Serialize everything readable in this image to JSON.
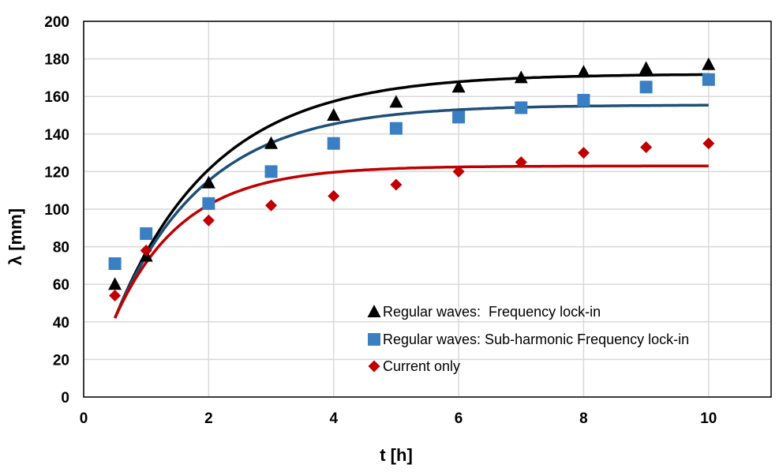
{
  "chart_data": {
    "type": "scatter",
    "xlabel": "t [h]",
    "ylabel": "λ [mm]",
    "xlim": [
      0,
      11
    ],
    "ylim": [
      0,
      200
    ],
    "xticks": [
      0,
      2,
      4,
      6,
      8,
      10
    ],
    "yticks": [
      0,
      20,
      40,
      60,
      80,
      100,
      120,
      140,
      160,
      180,
      200
    ],
    "grid": true,
    "legend_position": "bottom-center",
    "series": [
      {
        "name": "Regular waves:  Frequency lock-in",
        "marker": "triangle",
        "color": "#000000",
        "fit_color": "#000000",
        "x": [
          0.5,
          1,
          2,
          3,
          4,
          5,
          6,
          7,
          8,
          9,
          10
        ],
        "y": [
          60,
          75,
          114,
          135,
          150,
          157,
          165,
          170,
          173,
          175,
          177
        ],
        "fit": {
          "asymptote": 172,
          "start_value": 42,
          "tau": 1.6
        }
      },
      {
        "name": "Regular waves: Sub-harmonic Frequency lock-in",
        "marker": "square",
        "color": "#3a7fc1",
        "fit_color": "#1f4e79",
        "x": [
          0.5,
          1,
          2,
          3,
          4,
          5,
          6,
          7,
          8,
          9,
          10
        ],
        "y": [
          71,
          87,
          103,
          120,
          135,
          143,
          149,
          154,
          158,
          165,
          169
        ],
        "fit": {
          "asymptote": 155.5,
          "start_value": 42,
          "tau": 1.45
        }
      },
      {
        "name": "Current only",
        "marker": "diamond",
        "color": "#c00000",
        "fit_color": "#c00000",
        "x": [
          0.5,
          1,
          2,
          3,
          4,
          5,
          6,
          7,
          8,
          9,
          10
        ],
        "y": [
          54,
          78,
          94,
          102,
          107,
          113,
          120,
          125,
          130,
          133,
          135
        ],
        "fit": {
          "asymptote": 123,
          "start_value": 42,
          "tau": 1.1
        }
      }
    ]
  }
}
